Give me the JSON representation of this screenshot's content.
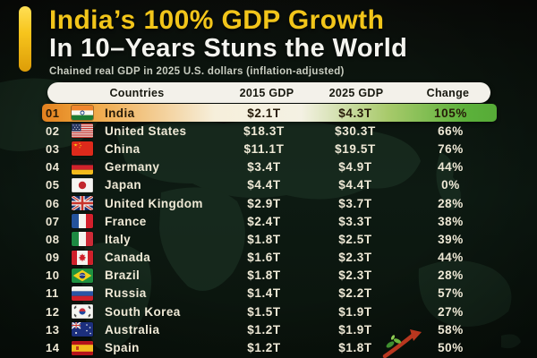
{
  "page": {
    "title_line1": "India’s 100% GDP Growth",
    "title_line2": "In 10–Years Stuns the World",
    "subtitle": "Chained real GDP in 2025 U.S. dollars (inflation-adjusted)"
  },
  "colors": {
    "accent_yellow": "#f2c51a",
    "background_dark": "#0c1710",
    "map_land": "#1d3425",
    "header_bar_bg": "#f3f1ea",
    "header_bar_text": "#17180f",
    "row_text": "#efe9d6",
    "india_row_orange": "#e2811f",
    "india_row_green": "#56ab37"
  },
  "chart_data": {
    "type": "table",
    "title": "India’s 100% GDP Growth In 10–Years Stuns the World",
    "subtitle": "Chained real GDP in 2025 U.S. dollars (inflation-adjusted)",
    "columns": [
      "Countries",
      "2015 GDP",
      "2025 GDP",
      "Change"
    ],
    "rows": [
      {
        "rank": "01",
        "country": "India",
        "flag": "flag-india",
        "gdp_2015": "$2.1T",
        "gdp_2025": "$4.3T",
        "change": "105%",
        "highlight": true
      },
      {
        "rank": "02",
        "country": "United States",
        "flag": "flag-united-states",
        "gdp_2015": "$18.3T",
        "gdp_2025": "$30.3T",
        "change": "66%"
      },
      {
        "rank": "03",
        "country": "China",
        "flag": "flag-china",
        "gdp_2015": "$11.1T",
        "gdp_2025": "$19.5T",
        "change": "76%"
      },
      {
        "rank": "04",
        "country": "Germany",
        "flag": "flag-germany",
        "gdp_2015": "$3.4T",
        "gdp_2025": "$4.9T",
        "change": "44%"
      },
      {
        "rank": "05",
        "country": "Japan",
        "flag": "flag-japan",
        "gdp_2015": "$4.4T",
        "gdp_2025": "$4.4T",
        "change": "0%"
      },
      {
        "rank": "06",
        "country": "United Kingdom",
        "flag": "flag-united-kingdom",
        "gdp_2015": "$2.9T",
        "gdp_2025": "$3.7T",
        "change": "28%"
      },
      {
        "rank": "07",
        "country": "France",
        "flag": "flag-france",
        "gdp_2015": "$2.4T",
        "gdp_2025": "$3.3T",
        "change": "38%"
      },
      {
        "rank": "08",
        "country": "Italy",
        "flag": "flag-italy",
        "gdp_2015": "$1.8T",
        "gdp_2025": "$2.5T",
        "change": "39%"
      },
      {
        "rank": "09",
        "country": "Canada",
        "flag": "flag-canada",
        "gdp_2015": "$1.6T",
        "gdp_2025": "$2.3T",
        "change": "44%"
      },
      {
        "rank": "10",
        "country": "Brazil",
        "flag": "flag-brazil",
        "gdp_2015": "$1.8T",
        "gdp_2025": "$2.3T",
        "change": "28%"
      },
      {
        "rank": "11",
        "country": "Russia",
        "flag": "flag-russia",
        "gdp_2015": "$1.4T",
        "gdp_2025": "$2.2T",
        "change": "57%"
      },
      {
        "rank": "12",
        "country": "South Korea",
        "flag": "flag-south-korea",
        "gdp_2015": "$1.5T",
        "gdp_2025": "$1.9T",
        "change": "27%"
      },
      {
        "rank": "13",
        "country": "Australia",
        "flag": "flag-australia",
        "gdp_2015": "$1.2T",
        "gdp_2025": "$1.9T",
        "change": "58%"
      },
      {
        "rank": "14",
        "country": "Spain",
        "flag": "flag-spain",
        "gdp_2015": "$1.2T",
        "gdp_2025": "$1.8T",
        "change": "50%"
      }
    ]
  }
}
